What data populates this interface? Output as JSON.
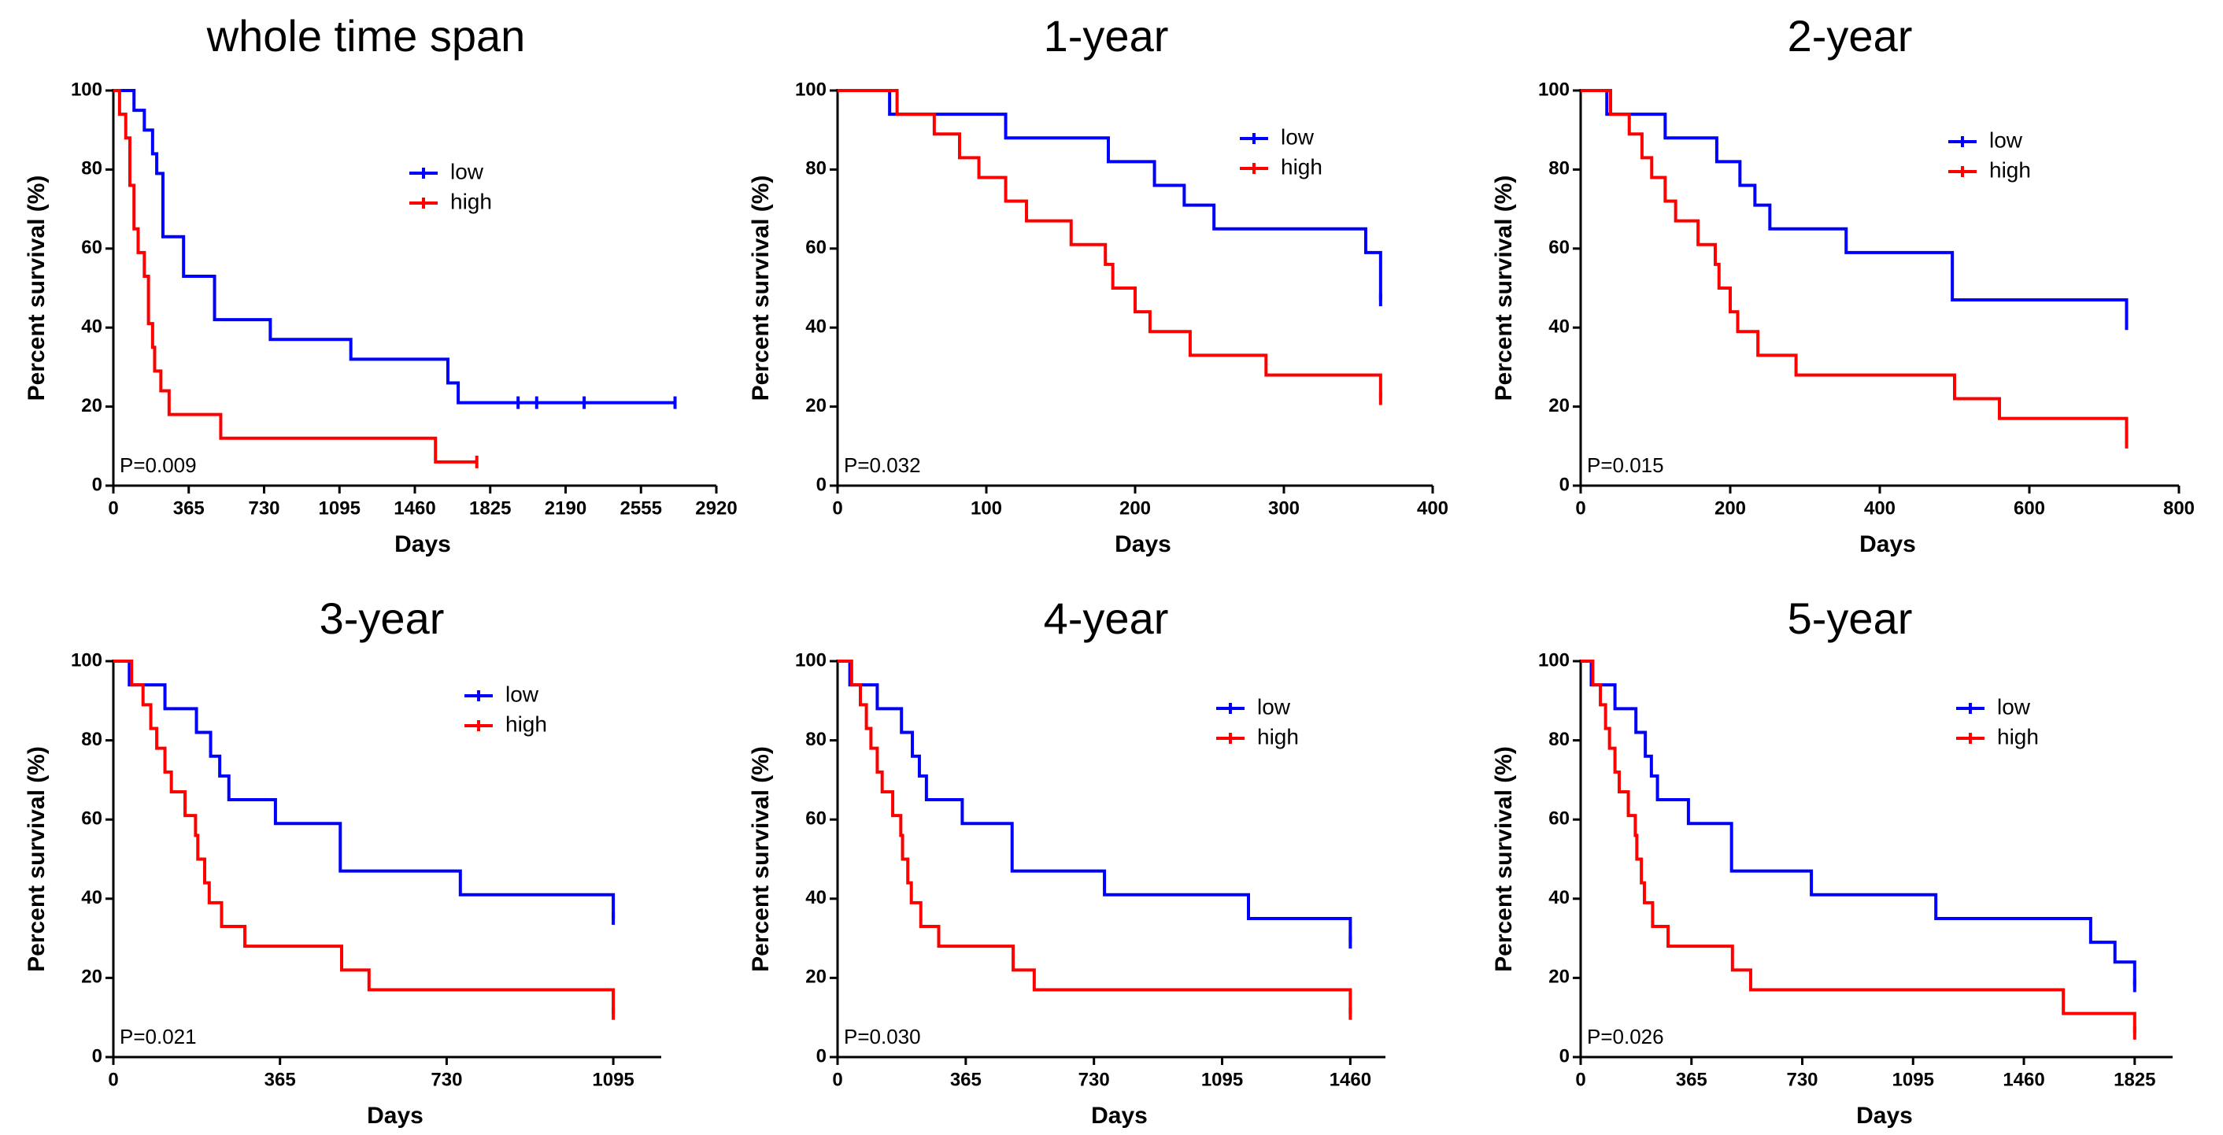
{
  "colors": {
    "low": "#0000ff",
    "high": "#ff0000",
    "axis": "#000000"
  },
  "chart_data": [
    {
      "type": "line",
      "title": "whole time span",
      "xlabel": "Days",
      "ylabel": "Percent survival (%)",
      "xlim": [
        0,
        2920
      ],
      "ylim": [
        0,
        100
      ],
      "xticks": [
        0,
        365,
        730,
        1095,
        1460,
        1825,
        2190,
        2555,
        2920
      ],
      "yticks": [
        0,
        20,
        40,
        60,
        80,
        100
      ],
      "pvalue": "P=0.009",
      "legend_placement": "right-center",
      "series": [
        {
          "name": "low",
          "color": "#0000ff",
          "step": true,
          "x": [
            0,
            100,
            150,
            190,
            210,
            240,
            340,
            490,
            760,
            1150,
            1620,
            1670,
            1700,
            2720
          ],
          "y": [
            100,
            95,
            90,
            84,
            79,
            63,
            53,
            42,
            37,
            32,
            26,
            21,
            21,
            21
          ],
          "censored_x": [
            1960,
            2050,
            2280,
            2720
          ],
          "censored_y": [
            21,
            21,
            21,
            21
          ]
        },
        {
          "name": "high",
          "color": "#ff0000",
          "step": true,
          "x": [
            0,
            30,
            60,
            80,
            100,
            120,
            150,
            170,
            190,
            200,
            230,
            270,
            520,
            1560,
            1760
          ],
          "y": [
            100,
            94,
            88,
            76,
            65,
            59,
            53,
            41,
            35,
            29,
            24,
            18,
            12,
            6,
            6
          ],
          "censored_x": [
            1760
          ],
          "censored_y": [
            6
          ]
        }
      ]
    },
    {
      "type": "line",
      "title": "1-year",
      "xlabel": "Days",
      "ylabel": "Percent survival (%)",
      "xlim": [
        0,
        400
      ],
      "ylim": [
        0,
        100
      ],
      "xticks": [
        0,
        100,
        200,
        300,
        400
      ],
      "yticks": [
        0,
        20,
        40,
        60,
        80,
        100
      ],
      "pvalue": "P=0.032",
      "legend_placement": "top-right",
      "series": [
        {
          "name": "low",
          "color": "#0000ff",
          "step": true,
          "x": [
            0,
            35,
            113,
            182,
            213,
            233,
            253,
            355,
            365
          ],
          "y": [
            100,
            94,
            88,
            82,
            76,
            71,
            65,
            59,
            47
          ],
          "censored_x": [
            365
          ],
          "censored_y": [
            47
          ]
        },
        {
          "name": "high",
          "color": "#ff0000",
          "step": true,
          "x": [
            0,
            40,
            65,
            82,
            95,
            113,
            127,
            157,
            180,
            185,
            200,
            210,
            237,
            288,
            365
          ],
          "y": [
            100,
            94,
            89,
            83,
            78,
            72,
            67,
            61,
            56,
            50,
            44,
            39,
            33,
            28,
            22
          ],
          "censored_x": [
            365
          ],
          "censored_y": [
            22
          ]
        }
      ]
    },
    {
      "type": "line",
      "title": "2-year",
      "xlabel": "Days",
      "ylabel": "Percent survival (%)",
      "xlim": [
        0,
        800
      ],
      "ylim": [
        0,
        100
      ],
      "xticks": [
        0,
        200,
        400,
        600,
        800
      ],
      "yticks": [
        0,
        20,
        40,
        60,
        80,
        100
      ],
      "pvalue": "P=0.015",
      "legend_placement": "top-right",
      "series": [
        {
          "name": "low",
          "color": "#0000ff",
          "step": true,
          "x": [
            0,
            35,
            113,
            182,
            213,
            233,
            253,
            355,
            497,
            730
          ],
          "y": [
            100,
            94,
            88,
            82,
            76,
            71,
            65,
            59,
            47,
            41
          ],
          "censored_x": [
            730
          ],
          "censored_y": [
            41
          ]
        },
        {
          "name": "high",
          "color": "#ff0000",
          "step": true,
          "x": [
            0,
            40,
            65,
            82,
            95,
            113,
            127,
            157,
            180,
            185,
            200,
            210,
            237,
            288,
            500,
            560,
            730
          ],
          "y": [
            100,
            94,
            89,
            83,
            78,
            72,
            67,
            61,
            56,
            50,
            44,
            39,
            33,
            28,
            22,
            17,
            11
          ],
          "censored_x": [
            730
          ],
          "censored_y": [
            11
          ]
        }
      ]
    },
    {
      "type": "line",
      "title": "3-year",
      "xlabel": "Days",
      "ylabel": "Percent survival (%)",
      "xlim": [
        0,
        1200
      ],
      "ylim": [
        0,
        100
      ],
      "xticks": [
        0,
        365,
        730,
        1095
      ],
      "yticks": [
        0,
        20,
        40,
        60,
        80,
        100
      ],
      "pvalue": "P=0.021",
      "legend_placement": "top-right",
      "series": [
        {
          "name": "low",
          "color": "#0000ff",
          "step": true,
          "x": [
            0,
            35,
            113,
            182,
            213,
            233,
            253,
            355,
            497,
            760,
            1095
          ],
          "y": [
            100,
            94,
            88,
            82,
            76,
            71,
            65,
            59,
            47,
            41,
            35
          ],
          "censored_x": [
            1095
          ],
          "censored_y": [
            35
          ]
        },
        {
          "name": "high",
          "color": "#ff0000",
          "step": true,
          "x": [
            0,
            40,
            65,
            82,
            95,
            113,
            127,
            157,
            180,
            185,
            200,
            210,
            237,
            288,
            500,
            560,
            1095
          ],
          "y": [
            100,
            94,
            89,
            83,
            78,
            72,
            67,
            61,
            56,
            50,
            44,
            39,
            33,
            28,
            22,
            17,
            11
          ],
          "censored_x": [
            1095
          ],
          "censored_y": [
            11
          ]
        }
      ]
    },
    {
      "type": "line",
      "title": "4-year",
      "xlabel": "Days",
      "ylabel": "Percent survival (%)",
      "xlim": [
        0,
        1560
      ],
      "ylim": [
        0,
        100
      ],
      "xticks": [
        0,
        365,
        730,
        1095,
        1460
      ],
      "yticks": [
        0,
        20,
        40,
        60,
        80,
        100
      ],
      "pvalue": "P=0.030",
      "legend_placement": "top-right",
      "series": [
        {
          "name": "low",
          "color": "#0000ff",
          "step": true,
          "x": [
            0,
            35,
            113,
            182,
            213,
            233,
            253,
            355,
            497,
            760,
            1170,
            1460
          ],
          "y": [
            100,
            94,
            88,
            82,
            76,
            71,
            65,
            59,
            47,
            41,
            35,
            29
          ],
          "censored_x": [
            1460
          ],
          "censored_y": [
            29
          ]
        },
        {
          "name": "high",
          "color": "#ff0000",
          "step": true,
          "x": [
            0,
            40,
            65,
            82,
            95,
            113,
            127,
            157,
            180,
            185,
            200,
            210,
            237,
            288,
            500,
            560,
            1460
          ],
          "y": [
            100,
            94,
            89,
            83,
            78,
            72,
            67,
            61,
            56,
            50,
            44,
            39,
            33,
            28,
            22,
            17,
            11
          ],
          "censored_x": [
            1460
          ],
          "censored_y": [
            11
          ]
        }
      ]
    },
    {
      "type": "line",
      "title": "5-year",
      "xlabel": "Days",
      "ylabel": "Percent survival (%)",
      "xlim": [
        0,
        1950
      ],
      "ylim": [
        0,
        100
      ],
      "xticks": [
        0,
        365,
        730,
        1095,
        1460,
        1825
      ],
      "yticks": [
        0,
        20,
        40,
        60,
        80,
        100
      ],
      "pvalue": "P=0.026",
      "legend_placement": "top-right",
      "series": [
        {
          "name": "low",
          "color": "#0000ff",
          "step": true,
          "x": [
            0,
            35,
            113,
            182,
            213,
            233,
            253,
            355,
            497,
            760,
            1170,
            1680,
            1760,
            1825
          ],
          "y": [
            100,
            94,
            88,
            82,
            76,
            71,
            65,
            59,
            47,
            41,
            35,
            29,
            24,
            18
          ],
          "censored_x": [
            1825
          ],
          "censored_y": [
            18
          ]
        },
        {
          "name": "high",
          "color": "#ff0000",
          "step": true,
          "x": [
            0,
            40,
            65,
            82,
            95,
            113,
            127,
            157,
            180,
            185,
            200,
            210,
            237,
            288,
            500,
            560,
            1590,
            1825
          ],
          "y": [
            100,
            94,
            89,
            83,
            78,
            72,
            67,
            61,
            56,
            50,
            44,
            39,
            33,
            28,
            22,
            17,
            11,
            6
          ],
          "censored_x": [
            1825
          ],
          "censored_y": [
            6
          ]
        }
      ]
    }
  ]
}
